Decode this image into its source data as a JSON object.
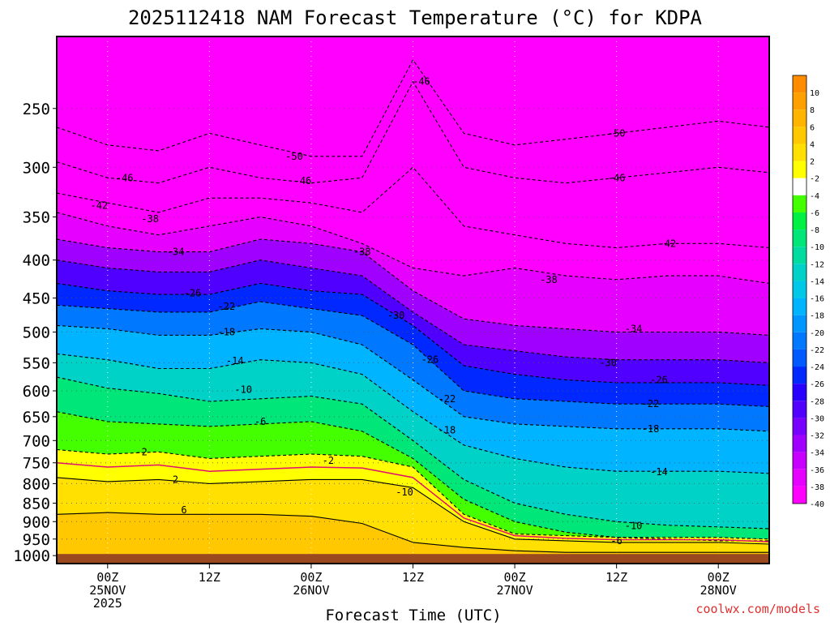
{
  "chart_data": {
    "type": "heatmap",
    "title": "2025112418 NAM Forecast Temperature (°C) for KDPA",
    "xlabel": "Forecast Time (UTC)",
    "ylabel": "",
    "watermark": "coolwx.com/models",
    "x_unit": "forecast hours from 2025-11-24 18Z",
    "xlim": [
      0,
      84
    ],
    "x_ticks": [
      {
        "hour": 6,
        "lines": [
          "00Z",
          "25NOV",
          "2025"
        ]
      },
      {
        "hour": 18,
        "lines": [
          "12Z"
        ]
      },
      {
        "hour": 30,
        "lines": [
          "00Z",
          "26NOV"
        ]
      },
      {
        "hour": 42,
        "lines": [
          "12Z"
        ]
      },
      {
        "hour": 54,
        "lines": [
          "00Z",
          "27NOV"
        ]
      },
      {
        "hour": 66,
        "lines": [
          "12Z"
        ]
      },
      {
        "hour": 78,
        "lines": [
          "00Z",
          "28NOV"
        ]
      }
    ],
    "y_unit": "hPa",
    "ylim": [
      1025,
      200
    ],
    "y_ticks": [
      250,
      300,
      350,
      400,
      450,
      500,
      550,
      600,
      650,
      700,
      750,
      800,
      850,
      900,
      950,
      1000
    ],
    "colorbar_labels": [
      "10",
      "8",
      "6",
      "4",
      "2",
      "-2",
      "-4",
      "-6",
      "-8",
      "-10",
      "-12",
      "-14",
      "-16",
      "-18",
      "-20",
      "-22",
      "-24",
      "-26",
      "-28",
      "-30",
      "-32",
      "-34",
      "-36",
      "-38",
      "-40"
    ],
    "colorbar_colors": [
      "#ff8c00",
      "#ffa000",
      "#ffb400",
      "#ffc800",
      "#ffe000",
      "#ffff00",
      "#ffffff",
      "#44ff00",
      "#00f044",
      "#00e678",
      "#00dca0",
      "#00d2c8",
      "#00c8e6",
      "#00b4ff",
      "#0096ff",
      "#0078ff",
      "#005aff",
      "#0028ff",
      "#2800ff",
      "#5000ff",
      "#7800ff",
      "#a000ff",
      "#c800ff",
      "#e600ff",
      "#ff00ff"
    ],
    "hours": [
      0,
      6,
      12,
      18,
      24,
      30,
      36,
      42,
      48,
      54,
      60,
      66,
      72,
      78,
      84
    ],
    "contours": [
      {
        "temp": 2,
        "pressure": [
          785,
          795,
          790,
          800,
          795,
          790,
          790,
          810,
          900,
          950,
          955,
          960,
          960,
          960,
          965
        ]
      },
      {
        "temp": -2,
        "pressure": [
          720,
          730,
          725,
          740,
          735,
          730,
          735,
          760,
          880,
          935,
          940,
          945,
          945,
          945,
          950
        ]
      },
      {
        "temp": -6,
        "pressure": [
          640,
          660,
          665,
          670,
          665,
          660,
          680,
          740,
          840,
          900,
          930,
          945,
          950,
          955,
          955
        ]
      },
      {
        "temp": -10,
        "pressure": [
          575,
          595,
          605,
          620,
          615,
          610,
          625,
          700,
          790,
          850,
          880,
          900,
          910,
          915,
          920
        ]
      },
      {
        "temp": -14,
        "pressure": [
          535,
          545,
          560,
          560,
          545,
          550,
          570,
          640,
          710,
          740,
          760,
          770,
          770,
          770,
          775
        ]
      },
      {
        "temp": -18,
        "pressure": [
          490,
          495,
          505,
          505,
          495,
          500,
          520,
          580,
          650,
          665,
          670,
          675,
          675,
          675,
          680
        ]
      },
      {
        "temp": -22,
        "pressure": [
          460,
          465,
          470,
          470,
          455,
          465,
          475,
          520,
          600,
          615,
          620,
          625,
          625,
          625,
          630
        ]
      },
      {
        "temp": -26,
        "pressure": [
          430,
          440,
          445,
          445,
          430,
          440,
          445,
          490,
          555,
          570,
          580,
          585,
          585,
          585,
          590
        ]
      },
      {
        "temp": -30,
        "pressure": [
          400,
          410,
          415,
          415,
          400,
          410,
          420,
          470,
          520,
          530,
          540,
          545,
          545,
          545,
          550
        ]
      },
      {
        "temp": -34,
        "pressure": [
          375,
          385,
          390,
          390,
          375,
          380,
          390,
          440,
          480,
          490,
          495,
          500,
          500,
          500,
          505
        ]
      },
      {
        "temp": -38,
        "pressure": [
          345,
          360,
          370,
          360,
          350,
          360,
          380,
          410,
          420,
          410,
          420,
          425,
          420,
          420,
          430
        ]
      },
      {
        "temp": -42,
        "pressure": [
          325,
          335,
          345,
          330,
          330,
          335,
          345,
          300,
          360,
          370,
          380,
          385,
          380,
          380,
          385
        ]
      },
      {
        "temp": -46,
        "pressure": [
          295,
          310,
          315,
          300,
          310,
          315,
          310,
          230,
          300,
          310,
          315,
          310,
          305,
          300,
          305
        ]
      },
      {
        "temp": -50,
        "pressure": [
          265,
          280,
          285,
          270,
          280,
          290,
          290,
          215,
          270,
          280,
          275,
          270,
          265,
          260,
          265
        ]
      }
    ],
    "contour_labels": [
      {
        "text": "-46",
        "hour": 43,
        "pressure": 230
      },
      {
        "text": "-50",
        "hour": 28,
        "pressure": 290
      },
      {
        "text": "-46",
        "hour": 8,
        "pressure": 310
      },
      {
        "text": "-46",
        "hour": 29,
        "pressure": 313
      },
      {
        "text": "-42",
        "hour": 5,
        "pressure": 338
      },
      {
        "text": "-38",
        "hour": 11,
        "pressure": 352
      },
      {
        "text": "-34",
        "hour": 14,
        "pressure": 390
      },
      {
        "text": "-38",
        "hour": 36,
        "pressure": 390
      },
      {
        "text": "-26",
        "hour": 16,
        "pressure": 443
      },
      {
        "text": "-22",
        "hour": 20,
        "pressure": 462
      },
      {
        "text": "-18",
        "hour": 20,
        "pressure": 500
      },
      {
        "text": "-14",
        "hour": 21,
        "pressure": 547
      },
      {
        "text": "-10",
        "hour": 22,
        "pressure": 598
      },
      {
        "text": "-6",
        "hour": 24,
        "pressure": 660
      },
      {
        "text": "-2",
        "hour": 10,
        "pressure": 725
      },
      {
        "text": "-2",
        "hour": 32,
        "pressure": 745
      },
      {
        "text": "2",
        "hour": 14,
        "pressure": 790
      },
      {
        "text": "6",
        "hour": 15,
        "pressure": 868
      },
      {
        "text": "-30",
        "hour": 40,
        "pressure": 475
      },
      {
        "text": "-26",
        "hour": 44,
        "pressure": 545
      },
      {
        "text": "-22",
        "hour": 46,
        "pressure": 615
      },
      {
        "text": "-18",
        "hour": 46,
        "pressure": 678
      },
      {
        "text": "-10",
        "hour": 41,
        "pressure": 822
      },
      {
        "text": "-38",
        "hour": 58,
        "pressure": 425
      },
      {
        "text": "-50",
        "hour": 66,
        "pressure": 270
      },
      {
        "text": "-46",
        "hour": 66,
        "pressure": 310
      },
      {
        "text": "-42",
        "hour": 72,
        "pressure": 380
      },
      {
        "text": "-34",
        "hour": 68,
        "pressure": 495
      },
      {
        "text": "-30",
        "hour": 65,
        "pressure": 550
      },
      {
        "text": "-26",
        "hour": 71,
        "pressure": 580
      },
      {
        "text": "-22",
        "hour": 70,
        "pressure": 625
      },
      {
        "text": "-18",
        "hour": 70,
        "pressure": 675
      },
      {
        "text": "-14",
        "hour": 71,
        "pressure": 772
      },
      {
        "text": "-10",
        "hour": 68,
        "pressure": 912
      },
      {
        "text": "-6",
        "hour": 66,
        "pressure": 955
      }
    ],
    "surface_pressure": 995,
    "colors": {
      "terrain": "#9b4a20",
      "freezing_line": "#e01070",
      "frame": "#000000",
      "grid": "#999999"
    }
  }
}
